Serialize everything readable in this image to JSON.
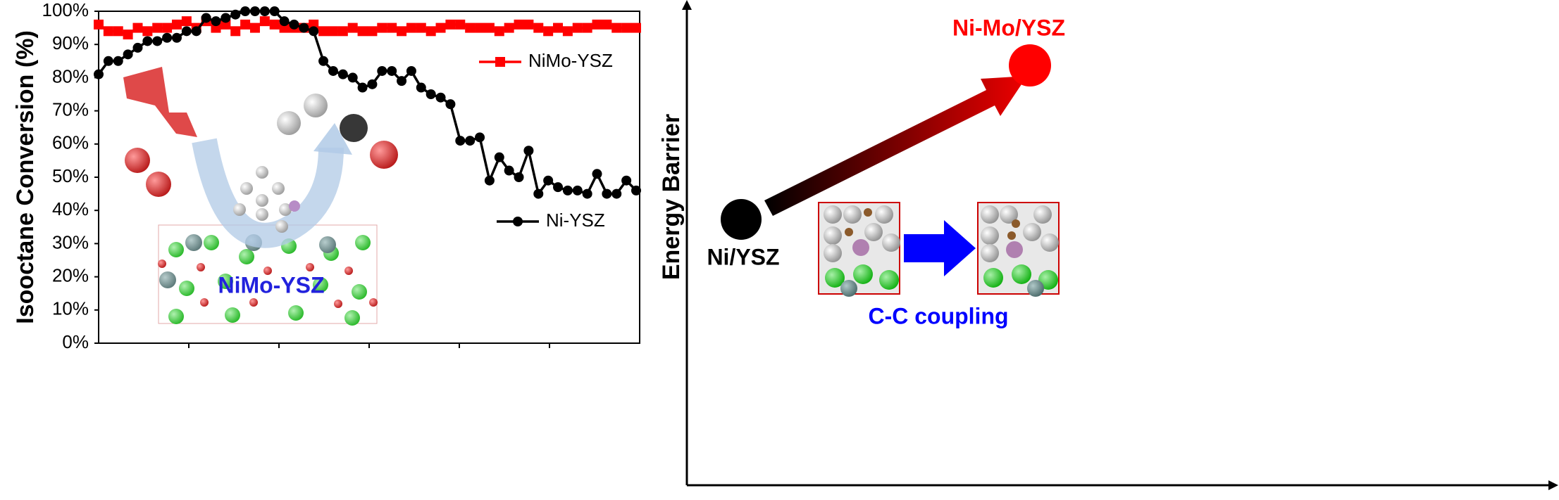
{
  "chart_data": {
    "type": "line",
    "ylabel": "Isooctane Conversion (%)",
    "categories": [
      null,
      null,
      null,
      null,
      null,
      null,
      null,
      null,
      null,
      null,
      null,
      null,
      null,
      null,
      null,
      null,
      null,
      null,
      null,
      null,
      null,
      null,
      null,
      null,
      null,
      null,
      null,
      null,
      null,
      null,
      null,
      null,
      null,
      null,
      null,
      null,
      null,
      null,
      null,
      null,
      null,
      null,
      null,
      null,
      null,
      null,
      null,
      null,
      null,
      null,
      null,
      null,
      null,
      null,
      null,
      null
    ],
    "series": [
      {
        "name": "NiMo-YSZ",
        "color": "#ff0000",
        "marker": "square",
        "values": [
          96,
          94,
          94,
          93,
          95,
          94,
          95,
          95,
          96,
          97,
          95,
          97,
          95,
          96,
          94,
          96,
          95,
          97,
          96,
          95,
          95,
          95,
          96,
          94,
          94,
          94,
          95,
          94,
          94,
          95,
          95,
          94,
          95,
          95,
          94,
          95,
          96,
          96,
          95,
          95,
          95,
          94,
          95,
          96,
          96,
          95,
          94,
          95,
          94,
          95,
          95,
          96,
          96,
          95,
          95,
          95
        ]
      },
      {
        "name": "Ni-YSZ",
        "color": "#000000",
        "marker": "circle",
        "values": [
          81,
          85,
          85,
          87,
          89,
          91,
          91,
          92,
          92,
          94,
          94,
          98,
          97,
          98,
          99,
          100,
          100,
          100,
          100,
          97,
          96,
          95,
          94,
          85,
          82,
          81,
          80,
          77,
          78,
          82,
          82,
          79,
          82,
          77,
          75,
          74,
          72,
          61,
          61,
          62,
          49,
          56,
          52,
          50,
          58,
          45,
          49,
          47,
          46,
          46,
          45,
          51,
          45,
          45,
          49,
          46
        ]
      }
    ],
    "ylim": [
      0,
      100
    ],
    "yticks": [
      {
        "value": 0,
        "label": "0%"
      },
      {
        "value": 10,
        "label": "10%"
      },
      {
        "value": 20,
        "label": "20%"
      },
      {
        "value": 30,
        "label": "30%"
      },
      {
        "value": 40,
        "label": "40%"
      },
      {
        "value": 50,
        "label": "50%"
      },
      {
        "value": 60,
        "label": "60%"
      },
      {
        "value": 70,
        "label": "70%"
      },
      {
        "value": 80,
        "label": "80%"
      },
      {
        "value": 90,
        "label": "90%"
      },
      {
        "value": 100,
        "label": "100%"
      }
    ],
    "annotation": "NiMo-YSZ"
  },
  "diagram": {
    "ylabel": "Energy Barrier",
    "low_label": "Ni/YSZ",
    "high_label": "Ni-Mo/YSZ",
    "process_label": "C-C coupling"
  }
}
